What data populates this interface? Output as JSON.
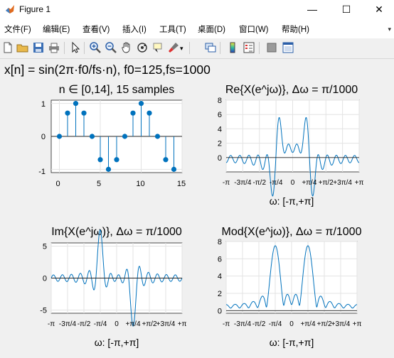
{
  "window": {
    "title": "Figure 1",
    "controls": {
      "minimize": "—",
      "maximize": "☐",
      "close": "✕"
    }
  },
  "menu": [
    {
      "label": "文件(F)"
    },
    {
      "label": "编辑(E)"
    },
    {
      "label": "查看(V)"
    },
    {
      "label": "插入(I)"
    },
    {
      "label": "工具(T)"
    },
    {
      "label": "桌面(D)"
    },
    {
      "label": "窗口(W)"
    },
    {
      "label": "帮助(H)"
    }
  ],
  "menu_overflow_icon": "chevron-down-icon",
  "toolbar": [
    "new-figure-icon",
    "open-file-icon",
    "save-icon",
    "print-icon",
    "edit-plot-icon",
    "zoom-in-icon",
    "zoom-out-icon",
    "pan-icon",
    "rotate-3d-icon",
    "data-cursor-icon",
    "brush-icon",
    "link-plot-icon",
    "insert-colorbar-icon",
    "insert-legend-icon",
    "hide-plot-tools-icon",
    "show-plot-tools-icon"
  ],
  "figure": {
    "suptitle": "x[n] = sin(2π·f0/fs·n), f0=125,fs=1000",
    "line_color": "#0072bd"
  },
  "chart_data": [
    {
      "type": "stem",
      "title": "n ∈ [0,14], 15 samples",
      "x": [
        0,
        1,
        2,
        3,
        4,
        5,
        6,
        7,
        8,
        9,
        10,
        11,
        12,
        13,
        14
      ],
      "y": [
        0,
        0.707,
        1,
        0.707,
        0,
        -0.707,
        -1,
        -0.707,
        0,
        0.707,
        1,
        0.707,
        0,
        -0.707,
        -1
      ],
      "xlim": [
        -1,
        15
      ],
      "ylim": [
        -1.1,
        1.1
      ],
      "xticks": [
        "0",
        "5",
        "10",
        "15"
      ],
      "yticks": [
        "1",
        "0",
        "-1"
      ],
      "grid": true,
      "xlabel": ""
    },
    {
      "type": "line",
      "title": "Re{X(e^jω)}, Δω = π/1000",
      "description": "real part of DTFT of 15-sample sinusoid; peaks ≈7.4 at ω=±π/4",
      "xlim": [
        -3.1416,
        3.1416
      ],
      "ylim": [
        -2,
        8
      ],
      "xticks": [
        "-π",
        "-3π/4",
        "-π/2",
        "-π/4",
        "0",
        "+π/4",
        "+π/2",
        "+3π/4",
        "+π"
      ],
      "yticks": [
        "8",
        "6",
        "4",
        "2",
        "0"
      ],
      "xlabel": "ω: [-π,+π]",
      "grid": true
    },
    {
      "type": "line",
      "title": "Im{X(e^jω)}, Δω = π/1000",
      "description": "imaginary part of DTFT; extremes ≈ ±5",
      "xlim": [
        -3.1416,
        3.1416
      ],
      "ylim": [
        -5.5,
        5.5
      ],
      "xticks": [
        "-π",
        "-3π/4",
        "-π/2",
        "-π/4",
        "0",
        "+π/4",
        "+π/2",
        "+3π/4",
        "+π"
      ],
      "yticks": [
        "5",
        "0",
        "-5"
      ],
      "xlabel": "ω: [-π,+π]",
      "grid": true
    },
    {
      "type": "line",
      "title": "Mod{X(e^jω)}, Δω = π/1000",
      "description": "magnitude of DTFT; peaks ≈7.5 at ω=±π/4",
      "xlim": [
        -3.1416,
        3.1416
      ],
      "ylim": [
        -0.3,
        8
      ],
      "xticks": [
        "-π",
        "-3π/4",
        "-π/2",
        "-π/4",
        "0",
        "+π/4",
        "+π/2",
        "+3π/4",
        "+π"
      ],
      "yticks": [
        "8",
        "6",
        "4",
        "2",
        "0"
      ],
      "xlabel": "ω: [-π,+π]",
      "grid": true
    }
  ]
}
